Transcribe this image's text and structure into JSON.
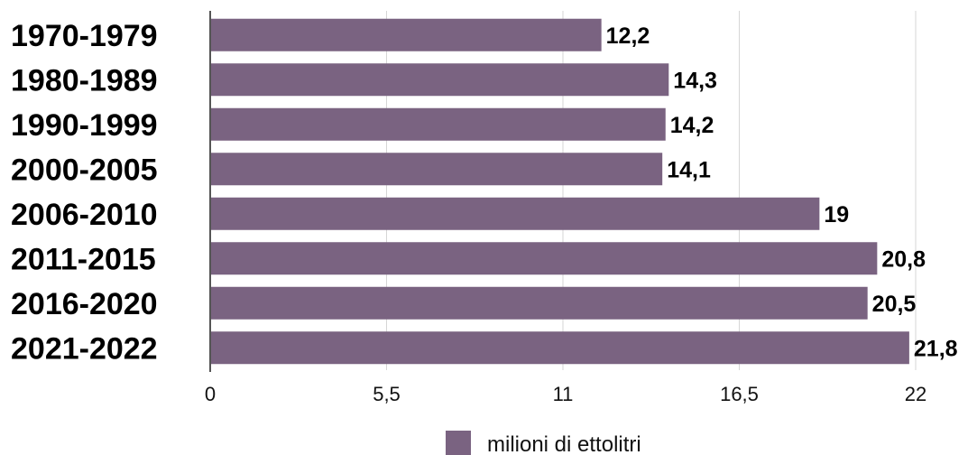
{
  "chart_data": {
    "type": "bar",
    "orientation": "horizontal",
    "categories": [
      "1970-1979",
      "1980-1989",
      "1990-1999",
      "2000-2005",
      "2006-2010",
      "2011-2015",
      "2016-2020",
      "2021-2022"
    ],
    "series": [
      {
        "name": "milioni di ettolitri",
        "values": [
          12.2,
          14.3,
          14.2,
          14.1,
          19,
          20.8,
          20.5,
          21.8
        ],
        "value_labels": [
          "12,2",
          "14,3",
          "14,2",
          "14,1",
          "19",
          "20,8",
          "20,5",
          "21,8"
        ],
        "color": "#7a6381"
      }
    ],
    "xlim": [
      0,
      22
    ],
    "x_ticks": [
      0,
      5.5,
      11,
      16.5,
      22
    ],
    "x_tick_labels": [
      "0",
      "5,5",
      "11",
      "16,5",
      "22"
    ],
    "grid": true,
    "legend": {
      "position": "bottom",
      "entries": [
        "milioni di ettolitri"
      ]
    }
  }
}
